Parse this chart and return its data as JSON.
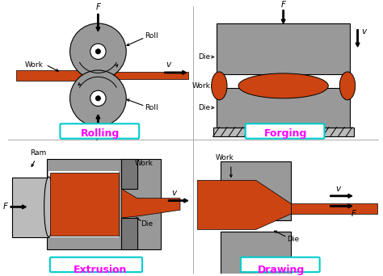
{
  "background_color": "#ffffff",
  "gray_color": "#999999",
  "dark_gray": "#777777",
  "light_gray": "#bbbbbb",
  "orange_color": "#cc4411",
  "cyan_border": "#00cccc",
  "magenta_text": "#ff00ff",
  "fs": 6.5,
  "labels": {
    "rolling": "Rolling",
    "forging": "Forging",
    "extrusion": "Extrusion",
    "drawing": "Drawing"
  }
}
